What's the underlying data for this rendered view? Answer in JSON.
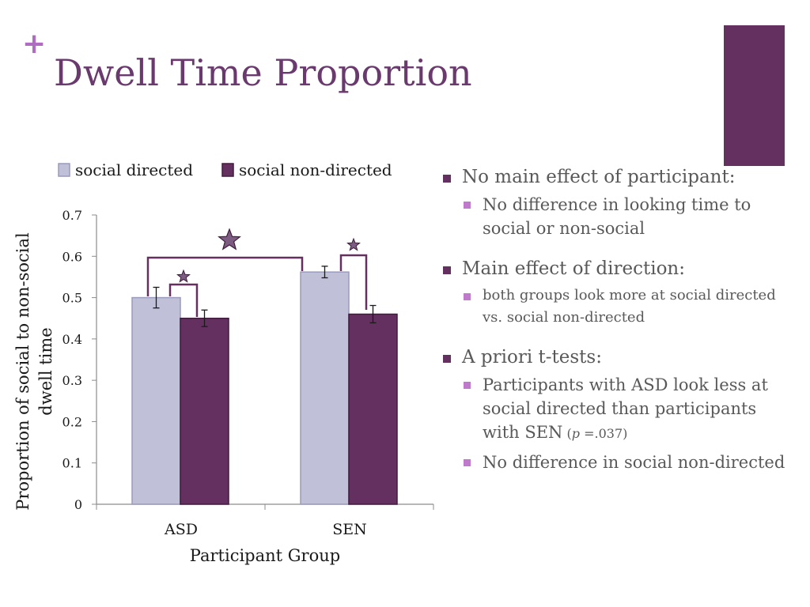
{
  "slide": {
    "plus_glyph": "+",
    "title": "Dwell Time Proportion",
    "colors": {
      "title": "#6a3a6e",
      "plus": "#b06cc1",
      "accent_bar": "#64305f",
      "bullet_l1": "#64305f",
      "bullet_l2": "#c07acc",
      "text": "#595959"
    }
  },
  "chart_data": {
    "type": "bar",
    "categories": [
      "ASD",
      "SEN"
    ],
    "series": [
      {
        "name": "social directed",
        "values": [
          0.5,
          0.562
        ],
        "errors": [
          0.025,
          0.014
        ],
        "color": "#c0c1d8"
      },
      {
        "name": "social non-directed",
        "values": [
          0.45,
          0.46
        ],
        "errors": [
          0.02,
          0.021
        ],
        "color": "#64305f"
      }
    ],
    "xlabel": "Participant Group",
    "ylabel_lines": [
      "Proportion of social to non-social",
      "dwell time"
    ],
    "ylim": [
      0,
      0.7
    ],
    "yticks": [
      "0",
      "0.1",
      "0.2",
      "0.3",
      "0.4",
      "0.5",
      "0.6",
      "0.7"
    ],
    "grid": false,
    "legend": "top",
    "significance": [
      {
        "between": "ASD social directed vs SEN social directed",
        "marker": "star",
        "size": "large"
      },
      {
        "between": "ASD social directed vs ASD social non-directed",
        "marker": "star",
        "size": "small"
      },
      {
        "between": "SEN social directed vs SEN social non-directed",
        "marker": "star",
        "size": "small"
      }
    ]
  },
  "bullets": [
    {
      "text": "No main effect of participant:",
      "sub": [
        {
          "text": "No difference in looking time to social or non-social"
        }
      ]
    },
    {
      "text": "Main effect of direction:",
      "sub": [
        {
          "text": "both groups look more at social directed vs. social non-directed",
          "small": true
        }
      ]
    },
    {
      "text": "A priori t-tests:",
      "sub": [
        {
          "text": "Participants with ASD look less at social directed than participants with SEN",
          "italic": "p",
          "tail": " =.037)",
          "open": " ("
        },
        {
          "text": "No difference in social non-directed"
        }
      ]
    }
  ]
}
